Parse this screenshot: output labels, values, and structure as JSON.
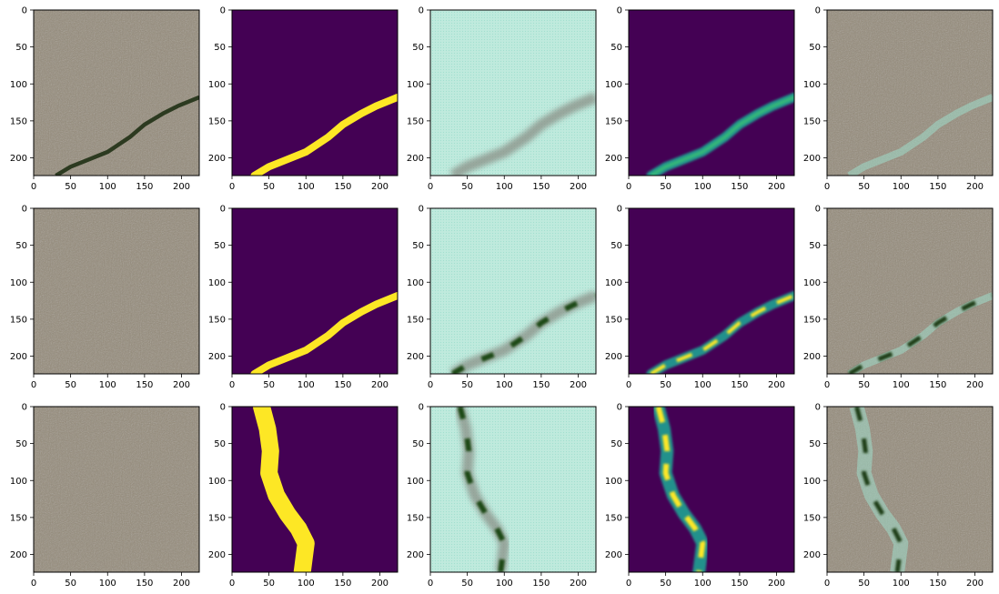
{
  "chart_data": {
    "type": "image-grid",
    "rows": 3,
    "cols": 5,
    "xlim": [
      0,
      224
    ],
    "ylim": [
      224,
      0
    ],
    "xticks": [
      0,
      50,
      100,
      150,
      200
    ],
    "yticks": [
      0,
      50,
      100,
      150,
      200
    ],
    "xtick_labels": [
      "0",
      "50",
      "100",
      "150",
      "200"
    ],
    "ytick_labels": [
      "0",
      "50",
      "100",
      "150",
      "200"
    ],
    "grid": false,
    "legend": "none",
    "panel_kinds": [
      "photo",
      "mask",
      "features",
      "heatmap",
      "overlay"
    ],
    "colors": {
      "photo": "#948a78",
      "mask_bg": "#440154",
      "mask_fg": "#fde725",
      "features_bg": "#bfeadd",
      "heat_low": "#440154",
      "heat_mid": "#21918c",
      "heat_high": "#fde725",
      "crack_dark": "#2c3a20"
    },
    "crack_paths": [
      [
        [
          30,
          224
        ],
        [
          50,
          212
        ],
        [
          70,
          204
        ],
        [
          100,
          192
        ],
        [
          130,
          172
        ],
        [
          150,
          155
        ],
        [
          175,
          140
        ],
        [
          195,
          130
        ],
        [
          224,
          118
        ]
      ],
      [
        [
          30,
          224
        ],
        [
          50,
          212
        ],
        [
          70,
          204
        ],
        [
          100,
          192
        ],
        [
          130,
          172
        ],
        [
          150,
          155
        ],
        [
          175,
          140
        ],
        [
          195,
          130
        ],
        [
          224,
          118
        ]
      ],
      [
        [
          40,
          0
        ],
        [
          48,
          30
        ],
        [
          52,
          60
        ],
        [
          50,
          90
        ],
        [
          60,
          120
        ],
        [
          75,
          145
        ],
        [
          90,
          165
        ],
        [
          100,
          185
        ],
        [
          95,
          224
        ]
      ]
    ]
  }
}
